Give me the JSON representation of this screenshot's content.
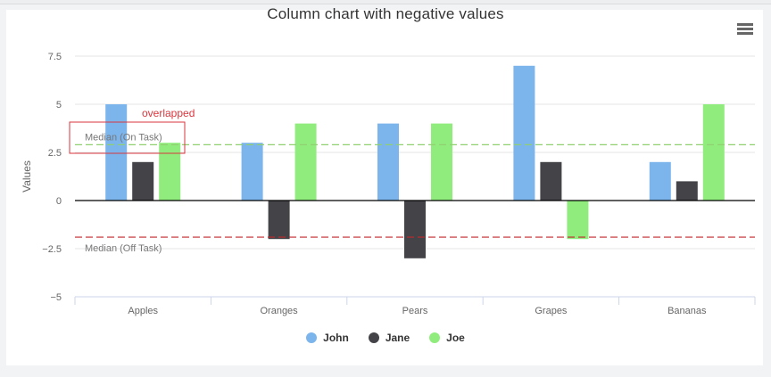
{
  "chart_data": {
    "type": "bar",
    "title": "Column chart with negative values",
    "xlabel": "",
    "ylabel": "Values",
    "categories": [
      "Apples",
      "Oranges",
      "Pears",
      "Grapes",
      "Bananas"
    ],
    "series": [
      {
        "name": "John",
        "color": "#7cb5ec",
        "values": [
          5,
          3,
          4,
          7,
          2
        ]
      },
      {
        "name": "Jane",
        "color": "#434348",
        "values": [
          2,
          -2,
          -3,
          2,
          1
        ]
      },
      {
        "name": "Joe",
        "color": "#90ed7d",
        "values": [
          3,
          4,
          4,
          -2,
          5
        ]
      }
    ],
    "ylim": [
      -5,
      7.5
    ],
    "yticks": [
      7.5,
      5,
      2.5,
      0,
      -2.5,
      -5
    ],
    "ytick_labels": [
      "7.5",
      "5",
      "2.5",
      "0",
      "−2.5",
      "−5"
    ],
    "grid": true,
    "legend_position": "bottom-center",
    "plot_lines": [
      {
        "label": "Median (On Task)",
        "value": 2.9,
        "color": "#90d070",
        "style": "dashed"
      },
      {
        "label": "Median (Off Task)",
        "value": -1.9,
        "color": "#c0282d",
        "style": "dashed"
      }
    ],
    "annotation": {
      "text": "overlapped",
      "color": "#d9363e"
    }
  },
  "menu_icon": "hamburger-menu-icon"
}
